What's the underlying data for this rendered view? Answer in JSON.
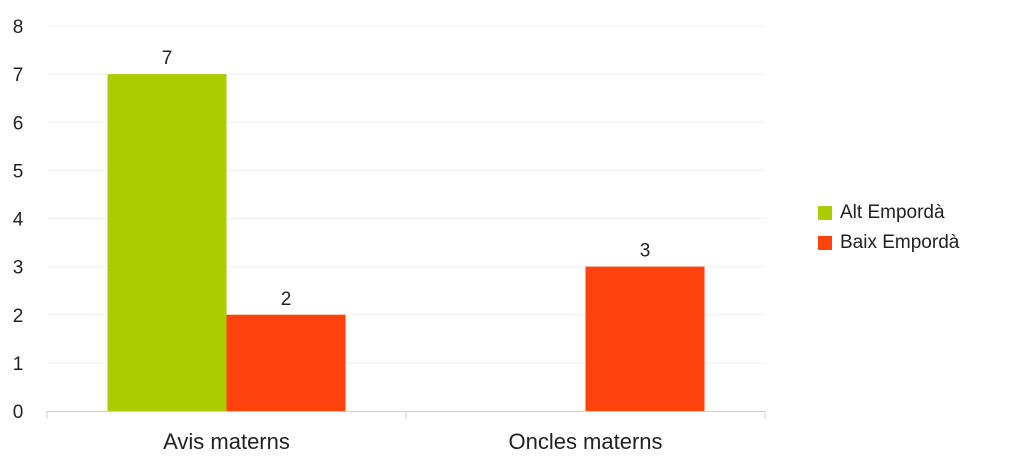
{
  "chart_data": {
    "type": "bar",
    "categories": [
      "Avis materns",
      "Oncles materns"
    ],
    "series": [
      {
        "name": "Alt Empordà",
        "color": "#aacc00",
        "values": [
          7,
          null
        ]
      },
      {
        "name": "Baix Empordà",
        "color": "#ff420e",
        "values": [
          2,
          3
        ]
      }
    ],
    "ylim": [
      0,
      8
    ],
    "yticks": [
      0,
      1,
      2,
      3,
      4,
      5,
      6,
      7,
      8
    ],
    "grid": true,
    "legend_position": "right",
    "title": "",
    "xlabel": "",
    "ylabel": ""
  }
}
